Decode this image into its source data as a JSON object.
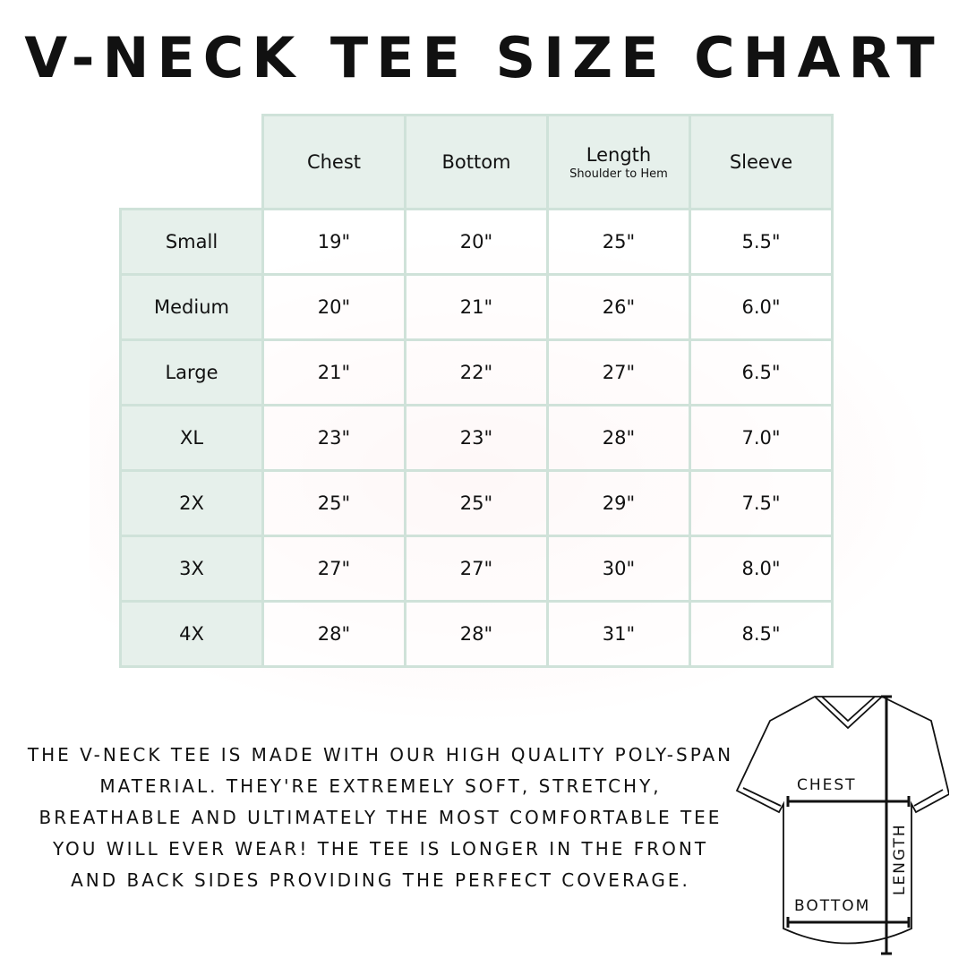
{
  "title": "V-NECK TEE SIZE CHART",
  "table": {
    "headers": [
      {
        "label": "Chest",
        "sub": ""
      },
      {
        "label": "Bottom",
        "sub": ""
      },
      {
        "label": "Length",
        "sub": "Shoulder to Hem"
      },
      {
        "label": "Sleeve",
        "sub": ""
      }
    ],
    "rows": [
      {
        "size": "Small",
        "values": [
          "19\"",
          "20\"",
          "25\"",
          "5.5\""
        ]
      },
      {
        "size": "Medium",
        "values": [
          "20\"",
          "21\"",
          "26\"",
          "6.0\""
        ]
      },
      {
        "size": "Large",
        "values": [
          "21\"",
          "22\"",
          "27\"",
          "6.5\""
        ]
      },
      {
        "size": "XL",
        "values": [
          "23\"",
          "23\"",
          "28\"",
          "7.0\""
        ]
      },
      {
        "size": "2X",
        "values": [
          "25\"",
          "25\"",
          "29\"",
          "7.5\""
        ]
      },
      {
        "size": "3X",
        "values": [
          "27\"",
          "27\"",
          "30\"",
          "8.0\""
        ]
      },
      {
        "size": "4X",
        "values": [
          "28\"",
          "28\"",
          "31\"",
          "8.5\""
        ]
      }
    ]
  },
  "description": "The V-neck tee is made with our high quality poly-span material. They're extremely soft, stretchy, breathable and ultimately the most comfortable tee you will ever wear! The tee is longer in the front and back sides providing the perfect coverage.",
  "diagram": {
    "chest": "CHEST",
    "bottom": "BOTTOM",
    "length": "LENGTH"
  },
  "colors": {
    "header_bg": "#e6f0eb",
    "border": "#cfe2d9"
  }
}
